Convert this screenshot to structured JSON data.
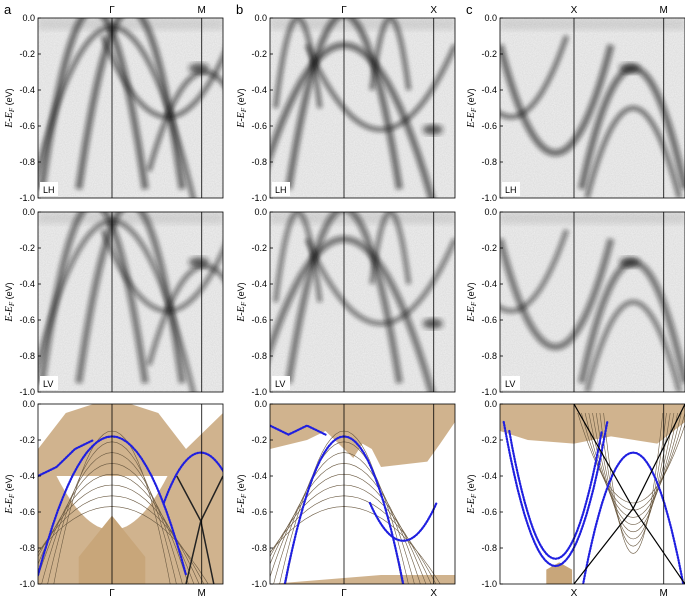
{
  "figure": {
    "columns": [
      {
        "letter": "a",
        "top_kpoints": [
          "Γ",
          "M"
        ],
        "bottom_kpoints": [
          "Γ",
          "M"
        ],
        "kpoint_pos": [
          0.4,
          0.885
        ]
      },
      {
        "letter": "b",
        "top_kpoints": [
          "Γ",
          "X"
        ],
        "bottom_kpoints": [
          "Γ",
          "X"
        ],
        "kpoint_pos": [
          0.4,
          0.885
        ]
      },
      {
        "letter": "c",
        "top_kpoints": [
          "X",
          "M"
        ],
        "bottom_kpoints": [
          "X",
          "M"
        ],
        "kpoint_pos": [
          0.4,
          0.885
        ]
      }
    ],
    "rows": [
      {
        "type": "arpes",
        "pol_label": "LH"
      },
      {
        "type": "arpes",
        "pol_label": "LV"
      },
      {
        "type": "calculation",
        "pol_label": ""
      }
    ],
    "y_axis": {
      "label_main": "E-E",
      "label_sub": "F",
      "label_unit": " (eV)",
      "ticks": [
        "0.0",
        "-0.2",
        "-0.4",
        "-0.6",
        "-0.8",
        "-1.0"
      ]
    },
    "colors": {
      "arpes_dark": "#1a1a1a",
      "band_fill": "#c8a67a",
      "band_line": "#6b5a42",
      "surface_state": "#1f1fe0"
    }
  },
  "chart_data": {
    "type": "band-structure-figure",
    "ylim": [
      -1.0,
      0.0
    ],
    "yticks": [
      0.0,
      -0.2,
      -0.4,
      -0.6,
      -0.8,
      -1.0
    ],
    "panels": [
      {
        "column": "a",
        "row": "LH",
        "path": [
          "Γ",
          "M"
        ]
      },
      {
        "column": "a",
        "row": "LV",
        "path": [
          "Γ",
          "M"
        ]
      },
      {
        "column": "a",
        "row": "calculation",
        "path": [
          "Γ",
          "M"
        ]
      },
      {
        "column": "b",
        "row": "LH",
        "path": [
          "Γ",
          "X"
        ]
      },
      {
        "column": "b",
        "row": "LV",
        "path": [
          "Γ",
          "X"
        ]
      },
      {
        "column": "b",
        "row": "calculation",
        "path": [
          "Γ",
          "X"
        ]
      },
      {
        "column": "c",
        "row": "LH",
        "path": [
          "X",
          "M"
        ]
      },
      {
        "column": "c",
        "row": "LV",
        "path": [
          "X",
          "M"
        ]
      },
      {
        "column": "c",
        "row": "calculation",
        "path": [
          "X",
          "M"
        ]
      }
    ]
  }
}
